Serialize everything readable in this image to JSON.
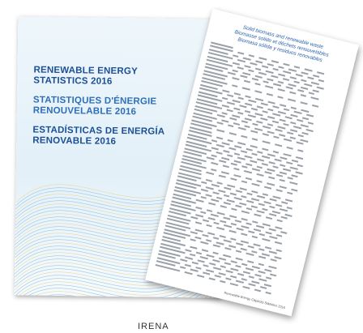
{
  "cover": {
    "lines": [
      "RENEWABLE ENERGY",
      "STATISTICS 2016",
      "STATISTIQUES D'ÉNERGIE",
      "RENOUVELABLE 2016",
      "ESTADÍSTICAS DE ENERGÍA",
      "RENOVABLE 2016"
    ]
  },
  "page": {
    "title": [
      "Solid biomass and renewable waste",
      "Biomasse solide et déchets renouvelables",
      "Biomasa sólida y residuos renovables"
    ],
    "footer": "Renewable Energy Capacity Statistics 2016"
  },
  "logo": "IRENA"
}
